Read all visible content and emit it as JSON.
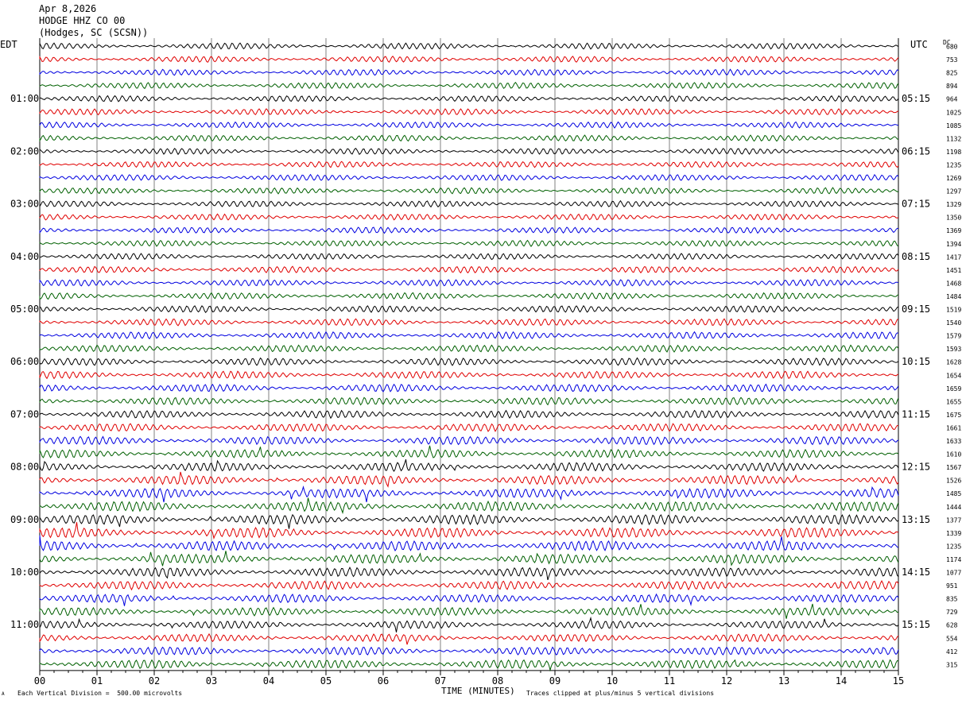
{
  "header": {
    "date": "Apr 8,2026",
    "station": "HODGE HHZ CO 00",
    "location": "(Hodges, SC (SCSN))"
  },
  "left_axis_label": "EDT",
  "right_axis_label": "UTC",
  "dc_label": "DC",
  "footer": {
    "scale_note": "Each Vertical Division =  500.00 microvolts",
    "xlabel": "TIME (MINUTES)",
    "clip_note": "Traces clipped at plus/minus 5 vertical divisions",
    "corner_mark": "A"
  },
  "colors": {
    "cycle": [
      "#000000",
      "#e00000",
      "#0000e0",
      "#006000"
    ],
    "grid": "#808080"
  },
  "chart_data": {
    "type": "line",
    "description_kind": "helicorder",
    "x_range": [
      0,
      15
    ],
    "xticks": [
      "00",
      "01",
      "02",
      "03",
      "04",
      "05",
      "06",
      "07",
      "08",
      "09",
      "10",
      "11",
      "12",
      "13",
      "14",
      "15"
    ],
    "trace_count": 48,
    "minutes_per_trace": 15,
    "left_hour_labels": [
      "01:00",
      "02:00",
      "03:00",
      "04:00",
      "05:00",
      "06:00",
      "07:00",
      "08:00",
      "09:00",
      "10:00",
      "11:00"
    ],
    "right_hour_labels": [
      "05:15",
      "06:15",
      "07:15",
      "08:15",
      "09:15",
      "10:15",
      "11:15",
      "12:15",
      "13:15",
      "14:15",
      "15:15"
    ],
    "hour_label_first_trace": 4,
    "dc_offsets": [
      680,
      753,
      825,
      894,
      964,
      1025,
      1085,
      1132,
      1198,
      1235,
      1269,
      1297,
      1329,
      1350,
      1369,
      1394,
      1417,
      1451,
      1468,
      1484,
      1519,
      1540,
      1579,
      1593,
      1628,
      1654,
      1659,
      1655,
      1675,
      1661,
      1633,
      1610,
      1567,
      1526,
      1485,
      1444,
      1377,
      1339,
      1235,
      1174,
      1077,
      951,
      835,
      729,
      628,
      554,
      412,
      315
    ],
    "trace_amplitude": [
      2.8,
      2.8,
      2.8,
      2.8,
      2.8,
      2.8,
      2.8,
      2.8,
      2.8,
      2.8,
      2.8,
      2.8,
      2.8,
      2.8,
      2.8,
      2.8,
      2.8,
      3,
      3,
      3,
      3.2,
      3.2,
      3.2,
      3.2,
      3.4,
      3.4,
      3.5,
      3.5,
      3.5,
      3.6,
      3.8,
      3.8,
      4,
      4.2,
      4.4,
      4.5,
      4.5,
      4.6,
      4.5,
      4.4,
      4.2,
      4,
      3.8,
      3.8,
      3.6,
      3.6,
      3.8,
      4
    ]
  }
}
